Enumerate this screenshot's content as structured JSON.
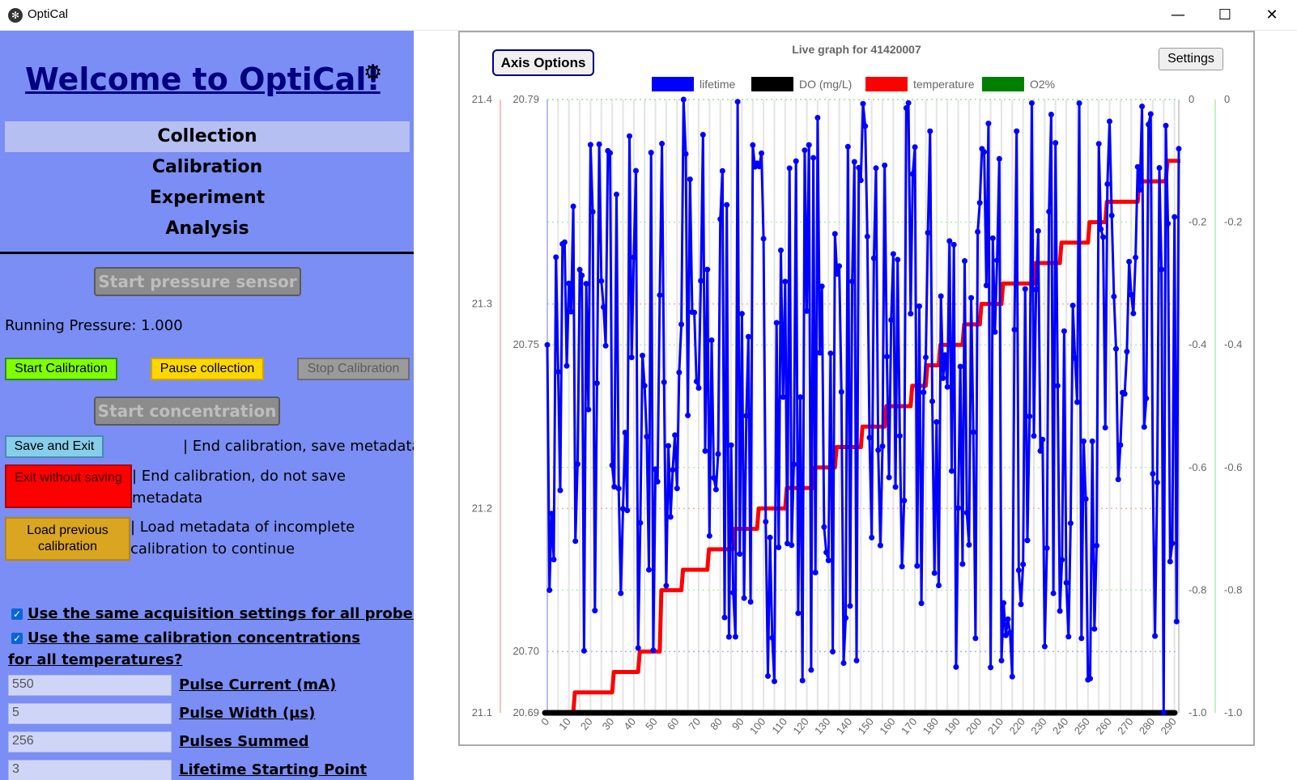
{
  "window": {
    "title": "OptiCal",
    "icon": "app-logo-icon",
    "minimize": "—",
    "maximize": "☐",
    "close": "✕"
  },
  "sidebar": {
    "welcome": "Welcome to OptiCal!",
    "settings_icon": "gear-icon",
    "nav": [
      {
        "label": "Collection",
        "active": true
      },
      {
        "label": "Calibration",
        "active": false
      },
      {
        "label": "Experiment",
        "active": false
      },
      {
        "label": "Analysis",
        "active": false
      }
    ],
    "start_pressure": "Start pressure sensor",
    "running_pressure": "Running Pressure: 1.000",
    "start_calibration": "Start Calibration",
    "pause_collection": "Pause collection",
    "stop_calibration": "Stop Calibration",
    "start_concentration": "Start concentration",
    "save_exit": "Save and Exit",
    "save_exit_desc": "| End calibration, save metadata",
    "exit_nosave": "Exit without saving",
    "exit_nosave_desc": "| End calibration, do not save metadata",
    "load_prev": "Load previous calibration",
    "load_prev_desc": "| Load metadata of incomplete calibration to continue",
    "same_acq": "Use the same acquisition settings for all probes?",
    "same_cal": "Use the same calibration concentrations for all temperatures?",
    "fields": [
      {
        "value": "550",
        "label": "Pulse Current (mA)"
      },
      {
        "value": "5",
        "label": "Pulse Width (µs)"
      },
      {
        "value": "256",
        "label": "Pulses Summed"
      },
      {
        "value": "3",
        "label": "Lifetime Starting Point"
      }
    ]
  },
  "chart_controls": {
    "axis_options": "Axis Options",
    "settings": "Settings"
  },
  "colors": {
    "sidebar": "#7b8ef5",
    "lifetime": "#0000ff",
    "do": "#000000",
    "temperature": "#ff0000",
    "o2": "#008000"
  },
  "chart_data": {
    "type": "line",
    "title": "Live graph for 41420007",
    "legend": [
      "lifetime",
      "DO (mg/L)",
      "temperature",
      "O2%"
    ],
    "legend_position": "top",
    "x_ticks": [
      "0",
      "10",
      "20",
      "30",
      "40",
      "50",
      "60",
      "70",
      "80",
      "90",
      "100",
      "110",
      "120",
      "130",
      "140",
      "150",
      "160",
      "170",
      "180",
      "190",
      "200",
      "210",
      "220",
      "230",
      "240",
      "250",
      "260",
      "270",
      "280",
      "290"
    ],
    "xlim": [
      0,
      292
    ],
    "axes": {
      "temperature": {
        "side": "left-outer",
        "ylim": [
          21.1,
          21.4
        ],
        "ticks": [
          "21.4",
          "21.3",
          "21.2",
          "21.1"
        ],
        "tick_values": [
          21.4,
          21.3,
          21.2,
          21.1
        ]
      },
      "lifetime": {
        "side": "left-inner",
        "ylim": [
          20.69,
          20.79
        ],
        "ticks": [
          "20.79",
          "20.75",
          "20.70",
          "20.69"
        ],
        "tick_values": [
          20.79,
          20.75,
          20.7,
          20.69
        ]
      },
      "do": {
        "side": "right-inner",
        "ylim": [
          -1.0,
          0
        ],
        "ticks": [
          "0",
          "-0.2",
          "-0.4",
          "-0.6",
          "-0.8",
          "-1.0"
        ],
        "tick_values": [
          0,
          -0.2,
          -0.4,
          -0.6,
          -0.8,
          -1.0
        ]
      },
      "o2": {
        "side": "right-outer",
        "ylim": [
          -1.0,
          0
        ],
        "ticks": [
          "0",
          "-0.2",
          "-0.4",
          "-0.6",
          "-0.8",
          "-1.0"
        ],
        "tick_values": [
          0,
          -0.2,
          -0.4,
          -0.6,
          -0.8,
          -1.0
        ]
      }
    },
    "grid": true,
    "series": [
      {
        "name": "temperature",
        "axis": "temperature",
        "steps": [
          [
            0,
            21.1
          ],
          [
            12,
            21.11
          ],
          [
            30,
            21.12
          ],
          [
            42,
            21.13
          ],
          [
            52,
            21.16
          ],
          [
            62,
            21.17
          ],
          [
            74,
            21.18
          ],
          [
            86,
            21.19
          ],
          [
            97,
            21.2
          ],
          [
            110,
            21.21
          ],
          [
            123,
            21.22
          ],
          [
            133,
            21.23
          ],
          [
            145,
            21.24
          ],
          [
            156,
            21.25
          ],
          [
            168,
            21.26
          ],
          [
            175,
            21.27
          ],
          [
            181,
            21.28
          ],
          [
            185,
            21.28
          ],
          [
            192,
            21.29
          ],
          [
            200,
            21.3
          ],
          [
            210,
            21.31
          ],
          [
            225,
            21.32
          ],
          [
            237,
            21.33
          ],
          [
            250,
            21.34
          ],
          [
            258,
            21.35
          ],
          [
            273,
            21.36
          ],
          [
            286,
            21.37
          ],
          [
            292,
            21.37
          ]
        ]
      },
      {
        "name": "DO (mg/L)",
        "axis": "do",
        "value": -1.0
      },
      {
        "name": "O2%",
        "axis": "o2",
        "value": -1.0
      },
      {
        "name": "lifetime",
        "axis": "lifetime",
        "range": [
          20.695,
          20.79
        ],
        "points": 292
      }
    ]
  }
}
